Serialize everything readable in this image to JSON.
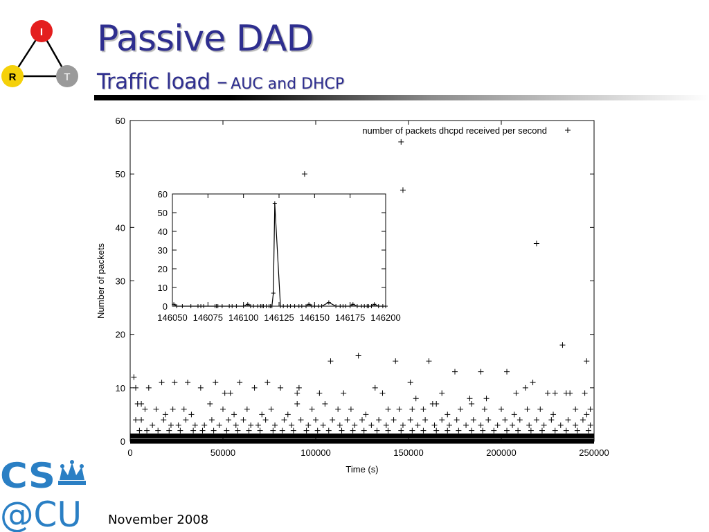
{
  "logo": {
    "nodes": [
      "I",
      "R",
      "T"
    ],
    "colors": {
      "I": "#e41e1e",
      "R": "#f5d10a",
      "T": "#9a9a9a"
    }
  },
  "slide": {
    "title": "Passive DAD",
    "subtitle_main": "Traffic load –",
    "subtitle_small": "AUC and DHCP",
    "footer_date": "November 2008"
  },
  "csu_logo": {
    "line1": "CS",
    "line2": "@CU",
    "color": "#2a7fc4"
  },
  "chart_data": [
    {
      "type": "scatter",
      "title": "",
      "xlabel": "Time (s)",
      "ylabel": "Number of packets",
      "xlim": [
        0,
        250000
      ],
      "ylim": [
        0,
        60
      ],
      "xticks": [
        0,
        50000,
        100000,
        150000,
        200000,
        250000
      ],
      "yticks": [
        0,
        10,
        20,
        30,
        40,
        50,
        60
      ],
      "legend": "top-right",
      "grid": false,
      "series": [
        {
          "name": "number of packets dhcpd received per second",
          "marker": "+",
          "points": [
            [
              2000,
              12
            ],
            [
              3000,
              10
            ],
            [
              10000,
              10
            ],
            [
              17000,
              11
            ],
            [
              24000,
              11
            ],
            [
              31000,
              11
            ],
            [
              38000,
              10
            ],
            [
              46000,
              11
            ],
            [
              51000,
              9
            ],
            [
              54000,
              9
            ],
            [
              59000,
              11
            ],
            [
              67000,
              10
            ],
            [
              74000,
              11
            ],
            [
              81000,
              10
            ],
            [
              90000,
              9
            ],
            [
              91000,
              10
            ],
            [
              94000,
              50
            ],
            [
              102000,
              9
            ],
            [
              108000,
              15
            ],
            [
              115000,
              9
            ],
            [
              123000,
              16
            ],
            [
              132000,
              10
            ],
            [
              136000,
              9
            ],
            [
              143000,
              15
            ],
            [
              146000,
              56
            ],
            [
              147000,
              47
            ],
            [
              151000,
              11
            ],
            [
              154000,
              8
            ],
            [
              161000,
              15
            ],
            [
              163000,
              7
            ],
            [
              168000,
              9
            ],
            [
              175000,
              13
            ],
            [
              183000,
              8
            ],
            [
              189000,
              13
            ],
            [
              192000,
              8
            ],
            [
              203000,
              13
            ],
            [
              208000,
              9
            ],
            [
              213000,
              10
            ],
            [
              217000,
              11
            ],
            [
              219000,
              37
            ],
            [
              225000,
              9
            ],
            [
              229000,
              9
            ],
            [
              233000,
              18
            ],
            [
              235000,
              9
            ],
            [
              237000,
              9
            ],
            [
              245000,
              9
            ],
            [
              246000,
              15
            ],
            [
              248000,
              6
            ],
            [
              4000,
              7
            ],
            [
              6000,
              7
            ],
            [
              8000,
              6
            ],
            [
              14000,
              6
            ],
            [
              19000,
              5
            ],
            [
              23000,
              6
            ],
            [
              29000,
              6
            ],
            [
              33000,
              5
            ],
            [
              43000,
              7
            ],
            [
              50000,
              6
            ],
            [
              56000,
              5
            ],
            [
              63000,
              6
            ],
            [
              71000,
              5
            ],
            [
              76000,
              6
            ],
            [
              85000,
              5
            ],
            [
              90000,
              7
            ],
            [
              98000,
              6
            ],
            [
              105000,
              7
            ],
            [
              112000,
              6
            ],
            [
              119000,
              6
            ],
            [
              127000,
              5
            ],
            [
              139000,
              6
            ],
            [
              145000,
              6
            ],
            [
              152000,
              6
            ],
            [
              158000,
              6
            ],
            [
              165000,
              7
            ],
            [
              171000,
              5
            ],
            [
              178000,
              6
            ],
            [
              184000,
              7
            ],
            [
              191000,
              6
            ],
            [
              200000,
              6
            ],
            [
              207000,
              5
            ],
            [
              214000,
              6
            ],
            [
              221000,
              6
            ],
            [
              228000,
              5
            ],
            [
              240000,
              6
            ],
            [
              246000,
              5
            ],
            [
              3000,
              4
            ],
            [
              6000,
              4
            ],
            [
              12000,
              3
            ],
            [
              18000,
              4
            ],
            [
              22000,
              3
            ],
            [
              26000,
              3
            ],
            [
              30000,
              4
            ],
            [
              35000,
              3
            ],
            [
              40000,
              3
            ],
            [
              44000,
              4
            ],
            [
              48000,
              3
            ],
            [
              53000,
              4
            ],
            [
              57000,
              3
            ],
            [
              61000,
              4
            ],
            [
              65000,
              3
            ],
            [
              69000,
              3
            ],
            [
              73000,
              4
            ],
            [
              78000,
              3
            ],
            [
              83000,
              4
            ],
            [
              87000,
              3
            ],
            [
              92000,
              4
            ],
            [
              96000,
              3
            ],
            [
              100000,
              4
            ],
            [
              104000,
              3
            ],
            [
              109000,
              4
            ],
            [
              113000,
              3
            ],
            [
              117000,
              4
            ],
            [
              121000,
              3
            ],
            [
              125000,
              4
            ],
            [
              130000,
              3
            ],
            [
              134000,
              4
            ],
            [
              138000,
              3
            ],
            [
              142000,
              4
            ],
            [
              147000,
              3
            ],
            [
              151000,
              4
            ],
            [
              155000,
              3
            ],
            [
              159000,
              4
            ],
            [
              164000,
              3
            ],
            [
              168000,
              4
            ],
            [
              172000,
              3
            ],
            [
              176000,
              4
            ],
            [
              181000,
              3
            ],
            [
              185000,
              4
            ],
            [
              189000,
              3
            ],
            [
              193000,
              4
            ],
            [
              198000,
              3
            ],
            [
              202000,
              4
            ],
            [
              206000,
              3
            ],
            [
              210000,
              4
            ],
            [
              215000,
              3
            ],
            [
              219000,
              4
            ],
            [
              223000,
              3
            ],
            [
              227000,
              4
            ],
            [
              232000,
              3
            ],
            [
              236000,
              4
            ],
            [
              240000,
              3
            ],
            [
              244000,
              4
            ],
            [
              248000,
              3
            ],
            [
              5000,
              2
            ],
            [
              9000,
              2
            ],
            [
              15000,
              2
            ],
            [
              21000,
              2
            ],
            [
              27000,
              2
            ],
            [
              34000,
              2
            ],
            [
              39000,
              2
            ],
            [
              45000,
              2
            ],
            [
              52000,
              2
            ],
            [
              58000,
              2
            ],
            [
              64000,
              2
            ],
            [
              70000,
              2
            ],
            [
              77000,
              2
            ],
            [
              82000,
              2
            ],
            [
              88000,
              2
            ],
            [
              95000,
              2
            ],
            [
              101000,
              2
            ],
            [
              107000,
              2
            ],
            [
              114000,
              2
            ],
            [
              120000,
              2
            ],
            [
              126000,
              2
            ],
            [
              133000,
              2
            ],
            [
              139000,
              2
            ],
            [
              146000,
              2
            ],
            [
              152000,
              2
            ],
            [
              158000,
              2
            ],
            [
              165000,
              2
            ],
            [
              171000,
              2
            ],
            [
              177000,
              2
            ],
            [
              184000,
              2
            ],
            [
              190000,
              2
            ],
            [
              196000,
              2
            ],
            [
              203000,
              2
            ],
            [
              209000,
              2
            ],
            [
              216000,
              2
            ],
            [
              222000,
              2
            ],
            [
              229000,
              2
            ],
            [
              235000,
              2
            ],
            [
              241000,
              2
            ],
            [
              247000,
              2
            ]
          ],
          "dense_band": {
            "x_from": 0,
            "x_to": 250000,
            "y_values": [
              0,
              1
            ]
          }
        }
      ]
    },
    {
      "type": "line",
      "inset": true,
      "xlim": [
        146050,
        146200
      ],
      "ylim": [
        0,
        60
      ],
      "xticks": [
        146050,
        146075,
        146100,
        146125,
        146150,
        146175,
        146200
      ],
      "yticks": [
        0,
        10,
        20,
        30,
        40,
        50,
        60
      ],
      "series": [
        {
          "marker": "+",
          "points": [
            [
              146051,
              1
            ],
            [
              146053,
              0
            ],
            [
              146057,
              0
            ],
            [
              146063,
              0
            ],
            [
              146068,
              0
            ],
            [
              146070,
              0
            ],
            [
              146072,
              0
            ],
            [
              146080,
              0
            ],
            [
              146081,
              0
            ],
            [
              146082,
              0
            ],
            [
              146085,
              0
            ],
            [
              146090,
              0
            ],
            [
              146092,
              0
            ],
            [
              146095,
              0
            ],
            [
              146100,
              0
            ],
            [
              146103,
              1
            ],
            [
              146105,
              0
            ],
            [
              146107,
              0
            ],
            [
              146110,
              0
            ],
            [
              146112,
              0
            ],
            [
              146113,
              0
            ],
            [
              146114,
              0
            ],
            [
              146116,
              0
            ],
            [
              146118,
              0
            ],
            [
              146119,
              0
            ],
            [
              146120,
              0
            ],
            [
              146121,
              7
            ],
            [
              146122,
              55
            ],
            [
              146126,
              0
            ],
            [
              146128,
              0
            ],
            [
              146131,
              0
            ],
            [
              146133,
              0
            ],
            [
              146136,
              0
            ],
            [
              146139,
              0
            ],
            [
              146141,
              0
            ],
            [
              146144,
              0
            ],
            [
              146146,
              1
            ],
            [
              146148,
              0
            ],
            [
              146150,
              0
            ],
            [
              146153,
              0
            ],
            [
              146155,
              0
            ],
            [
              146160,
              2
            ],
            [
              146165,
              0
            ],
            [
              146168,
              0
            ],
            [
              146170,
              0
            ],
            [
              146172,
              0
            ],
            [
              146175,
              0
            ],
            [
              146177,
              1
            ],
            [
              146180,
              0
            ],
            [
              146183,
              0
            ],
            [
              146185,
              0
            ],
            [
              146187,
              0
            ],
            [
              146188,
              0
            ],
            [
              146190,
              0
            ],
            [
              146192,
              1
            ],
            [
              146195,
              0
            ],
            [
              146198,
              0
            ],
            [
              146200,
              0
            ]
          ]
        }
      ]
    }
  ]
}
